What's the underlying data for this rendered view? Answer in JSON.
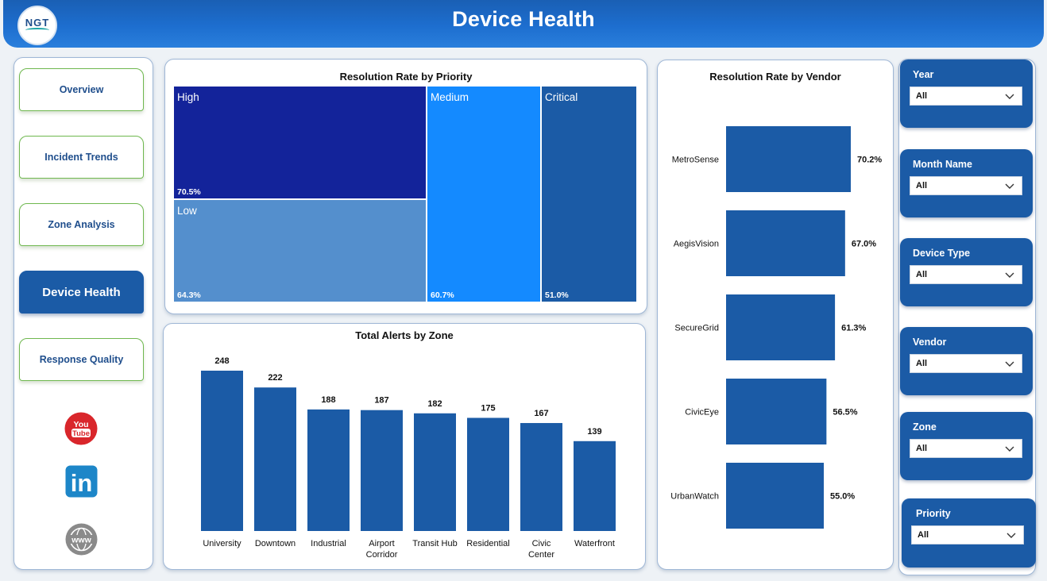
{
  "header": {
    "title": "Device Health",
    "logo_text": "NGT"
  },
  "nav": {
    "items": [
      {
        "label": "Overview",
        "name": "nav-overview-button",
        "active": false
      },
      {
        "label": "Incident Trends",
        "name": "nav-incident-trends-button",
        "active": false
      },
      {
        "label": "Zone Analysis",
        "name": "nav-zone-analysis-button",
        "active": false
      },
      {
        "label": "Device Health",
        "name": "nav-device-health-button",
        "active": true
      },
      {
        "label": "Response Quality",
        "name": "nav-response-quality-button",
        "active": false
      }
    ],
    "social": [
      "youtube-icon",
      "linkedin-icon",
      "website-globe-icon"
    ],
    "youtube_text": [
      "You",
      "Tube"
    ],
    "linkedin_text": "in",
    "website_text": "www"
  },
  "priority_panel": {
    "title": "Resolution Rate by Priority"
  },
  "zone_panel": {
    "title": "Total Alerts by Zone"
  },
  "vendor_panel": {
    "title": "Resolution Rate by Vendor"
  },
  "filters": [
    {
      "label": "Year",
      "value": "All"
    },
    {
      "label": "Month Name",
      "value": "All"
    },
    {
      "label": "Device Type",
      "value": "All"
    },
    {
      "label": "Vendor",
      "value": "All"
    },
    {
      "label": "Zone",
      "value": "All"
    },
    {
      "label": "Priority",
      "value": "All"
    }
  ],
  "colors": {
    "bar": "#1b5ba6",
    "treemap_high": "#13239a",
    "treemap_low": "#548fcd",
    "treemap_medium": "#148aff",
    "treemap_critical": "#1b5ba6",
    "header": "#1d6ecf"
  },
  "chart_data": [
    {
      "type": "treemap",
      "title": "Resolution Rate by Priority",
      "categories": [
        "High",
        "Low",
        "Medium",
        "Critical"
      ],
      "values": [
        70.5,
        64.3,
        60.7,
        51.0
      ],
      "labels": [
        "70.5%",
        "64.3%",
        "60.7%",
        "51.0%"
      ]
    },
    {
      "type": "bar",
      "title": "Total Alerts by Zone",
      "categories": [
        "University",
        "Downtown",
        "Industrial",
        "Airport Corridor",
        "Transit Hub",
        "Residential",
        "Civic Center",
        "Waterfront"
      ],
      "values": [
        248,
        222,
        188,
        187,
        182,
        175,
        167,
        139
      ],
      "ylim": [
        0,
        248
      ]
    },
    {
      "type": "bar",
      "orientation": "horizontal",
      "title": "Resolution Rate by Vendor",
      "categories": [
        "MetroSense",
        "AegisVision",
        "SecureGrid",
        "CivicEye",
        "UrbanWatch"
      ],
      "values": [
        70.2,
        67.0,
        61.3,
        56.5,
        55.0
      ],
      "labels": [
        "70.2%",
        "67.0%",
        "61.3%",
        "56.5%",
        "55.0%"
      ],
      "xlim": [
        0,
        70.2
      ]
    }
  ]
}
